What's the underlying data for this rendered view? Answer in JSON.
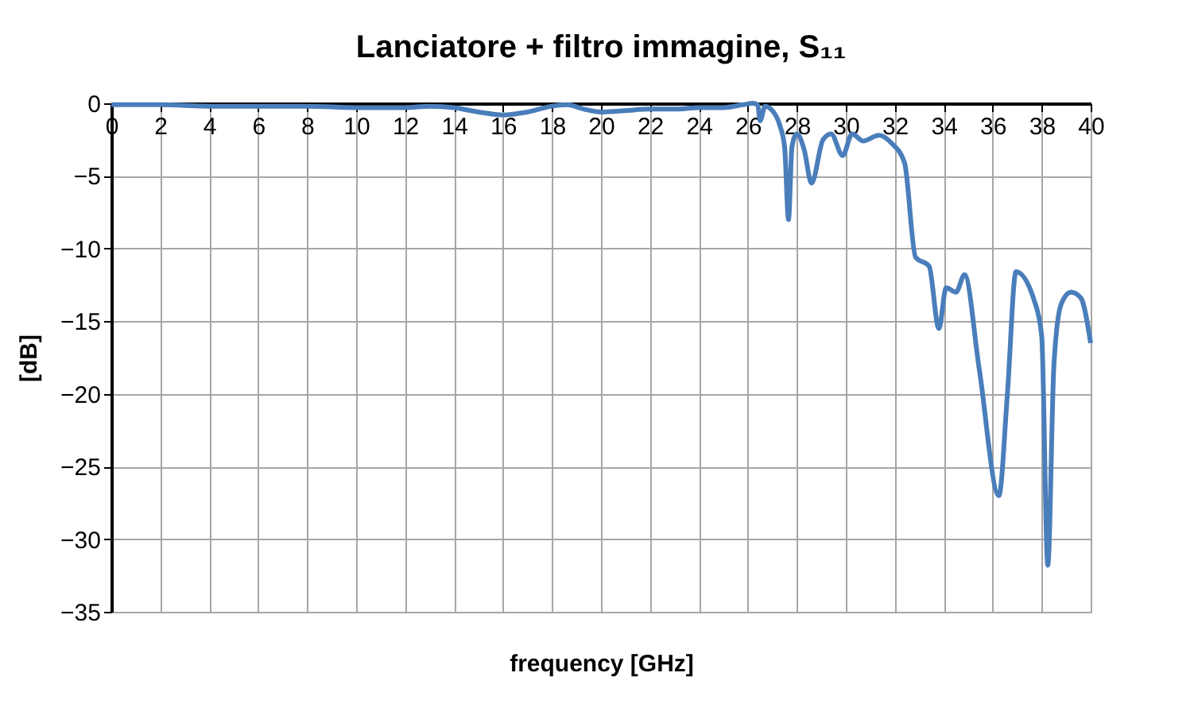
{
  "chart_data": {
    "type": "line",
    "title": "Lanciatore + filtro immagine, S₁₁",
    "xlabel": "frequency [GHz]",
    "ylabel": "[dB]",
    "xlim": [
      0,
      40
    ],
    "xticks": [
      0,
      2,
      4,
      6,
      8,
      10,
      12,
      14,
      16,
      18,
      20,
      22,
      24,
      26,
      28,
      30,
      32,
      34,
      36,
      38,
      40
    ],
    "ylim": [
      -35,
      0
    ],
    "yticks": [
      -35,
      -30,
      -25,
      -20,
      -15,
      -10,
      -5,
      0
    ],
    "grid": true,
    "legend": false,
    "marker": "none",
    "line_style": "solid",
    "series": [
      {
        "color": "#4a7ebb",
        "x": [
          0,
          2,
          4,
          6,
          8,
          10,
          12,
          13,
          14,
          15,
          16,
          17,
          18,
          18.6,
          19.3,
          20,
          21,
          22,
          23,
          24,
          25,
          25.8,
          26.2,
          26.4,
          26.5,
          26.7,
          27.0,
          27.3,
          27.5,
          27.66,
          27.8,
          28.0,
          28.3,
          28.6,
          29.07,
          29.4,
          29.87,
          30.26,
          30.7,
          31.35,
          31.9,
          32.4,
          32.85,
          33.4,
          33.8,
          34.1,
          34.5,
          34.85,
          35.45,
          36.25,
          36.6,
          36.95,
          37.7,
          38.0,
          38.25,
          38.5,
          38.8,
          39.2,
          39.6,
          40
        ],
        "values": [
          -0.1,
          -0.1,
          -0.2,
          -0.2,
          -0.2,
          -0.3,
          -0.3,
          -0.2,
          -0.3,
          -0.6,
          -0.8,
          -0.6,
          -0.2,
          -0.1,
          -0.4,
          -0.6,
          -0.5,
          -0.4,
          -0.4,
          -0.3,
          -0.3,
          -0.1,
          0,
          -0.1,
          -1.2,
          -0.2,
          -0.5,
          -1.5,
          -3,
          -8.0,
          -3,
          -2.1,
          -3.2,
          -5.5,
          -2.5,
          -2.1,
          -3.6,
          -2.1,
          -2.6,
          -2.2,
          -2.8,
          -4.1,
          -10.6,
          -11.2,
          -15.5,
          -12.7,
          -13.0,
          -11.8,
          -18.3,
          -27.0,
          -20,
          -11.6,
          -13.6,
          -16,
          -31.8,
          -18,
          -13.8,
          -13.0,
          -13.4,
          -16.5
        ]
      }
    ]
  }
}
